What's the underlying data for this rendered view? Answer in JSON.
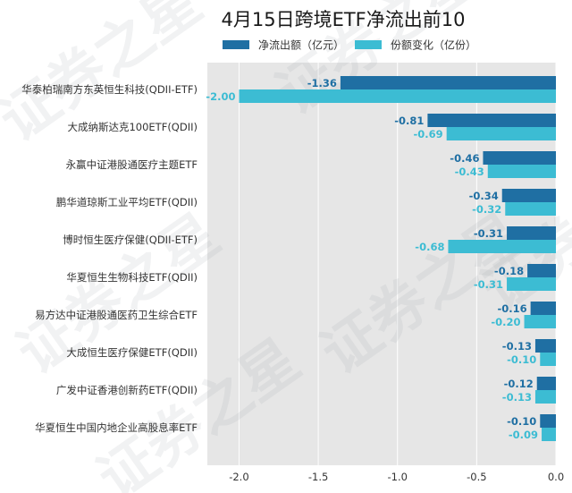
{
  "chart_data": {
    "type": "bar",
    "orientation": "horizontal",
    "title": "4月15日跨境ETF净流出前10",
    "categories": [
      "华泰柏瑞南方东英恒生科技(QDII-ETF)",
      "大成纳斯达克100ETF(QDII)",
      "永赢中证港股通医疗主题ETF",
      "鹏华道琼斯工业平均ETF(QDII)",
      "博时恒生医疗保健(QDII-ETF)",
      "华夏恒生生物科技ETF(QDII)",
      "易方达中证港股通医药卫生综合ETF",
      "大成恒生医疗保健ETF(QDII)",
      "广发中证香港创新药ETF(QDII)",
      "华夏恒生中国内地企业高股息率ETF"
    ],
    "series": [
      {
        "name": "净流出额（亿元）",
        "color": "#1f6fa3",
        "values": [
          -1.36,
          -0.81,
          -0.46,
          -0.34,
          -0.31,
          -0.18,
          -0.16,
          -0.13,
          -0.12,
          -0.1
        ],
        "labels": [
          "-1.36",
          "-0.81",
          "-0.46",
          "-0.34",
          "-0.31",
          "-0.18",
          "-0.16",
          "-0.13",
          "-0.12",
          "-0.10"
        ]
      },
      {
        "name": "份额变化（亿份）",
        "color": "#3cbcd3",
        "values": [
          -2.0,
          -0.69,
          -0.43,
          -0.32,
          -0.68,
          -0.31,
          -0.2,
          -0.1,
          -0.13,
          -0.09
        ],
        "labels": [
          "-2.00",
          "-0.69",
          "-0.43",
          "-0.32",
          "-0.68",
          "-0.31",
          "-0.20",
          "-0.10",
          "-0.13",
          "-0.09"
        ]
      }
    ],
    "xlim": [
      -2.2,
      0.0
    ],
    "xticks": [
      -2.0,
      -1.5,
      -1.0,
      -0.5,
      0.0
    ],
    "xtick_labels": [
      "-2.0",
      "-1.5",
      "-1.0",
      "-0.5",
      "0.0"
    ],
    "grid": true,
    "legend_position": "top-center",
    "background": "#e6e6e6"
  },
  "watermark_text": [
    "证券之星",
    "证券之星",
    "证券之星",
    "证券之星",
    "证券之星",
    "证券之星"
  ]
}
